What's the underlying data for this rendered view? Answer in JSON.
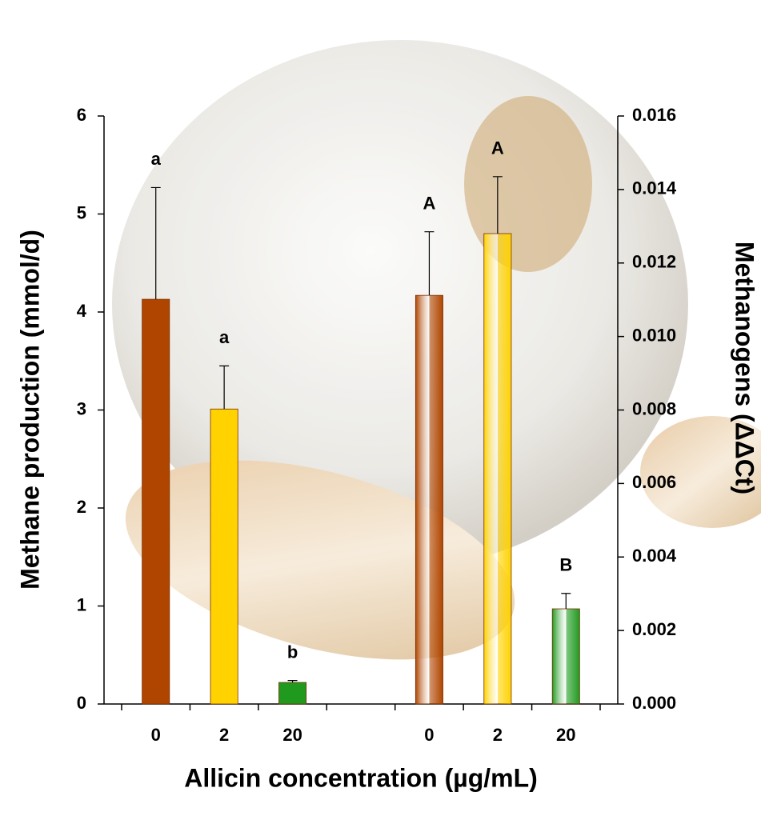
{
  "chart_data": {
    "type": "bar",
    "x_label": "Allicin concentration (µg/mL)",
    "y_label": "Methane production (mmol/d)",
    "y2_label": "Methanogens (ΔΔCt)",
    "categories": [
      "0",
      "2",
      "20",
      null,
      "0",
      "2",
      "20"
    ],
    "colors": [
      "#b04500",
      "#ffd200",
      "#1f9a1f",
      null,
      "#b04500",
      "#ffd200",
      "#1f9a1f"
    ],
    "series": [
      {
        "values": [
          4.13,
          3.01,
          0.22,
          null,
          null,
          null,
          null
        ],
        "errors": [
          1.14,
          0.44,
          0.02,
          null,
          null,
          null,
          null
        ],
        "letters": [
          "a",
          "a",
          "b",
          null,
          null,
          null,
          null
        ]
      },
      {
        "axis": "y2",
        "gradient": true,
        "values": [
          null,
          null,
          null,
          null,
          0.01112,
          0.0128,
          0.00259
        ],
        "errors": [
          null,
          null,
          null,
          null,
          0.00173,
          0.00155,
          0.00042
        ],
        "letters": [
          null,
          null,
          null,
          null,
          "A",
          "A",
          "B"
        ]
      }
    ],
    "ylim": [
      0,
      6
    ],
    "yticks": [
      0,
      1,
      2,
      3,
      4,
      5,
      6
    ],
    "y2lim": [
      0,
      0.016
    ],
    "y2ticks": [
      {
        "value": 0,
        "label": "0.000"
      },
      0.002,
      0.004,
      0.006,
      0.008,
      {
        "value": 0.01,
        "label": "0.010"
      },
      0.012,
      0.014,
      0.016
    ]
  }
}
